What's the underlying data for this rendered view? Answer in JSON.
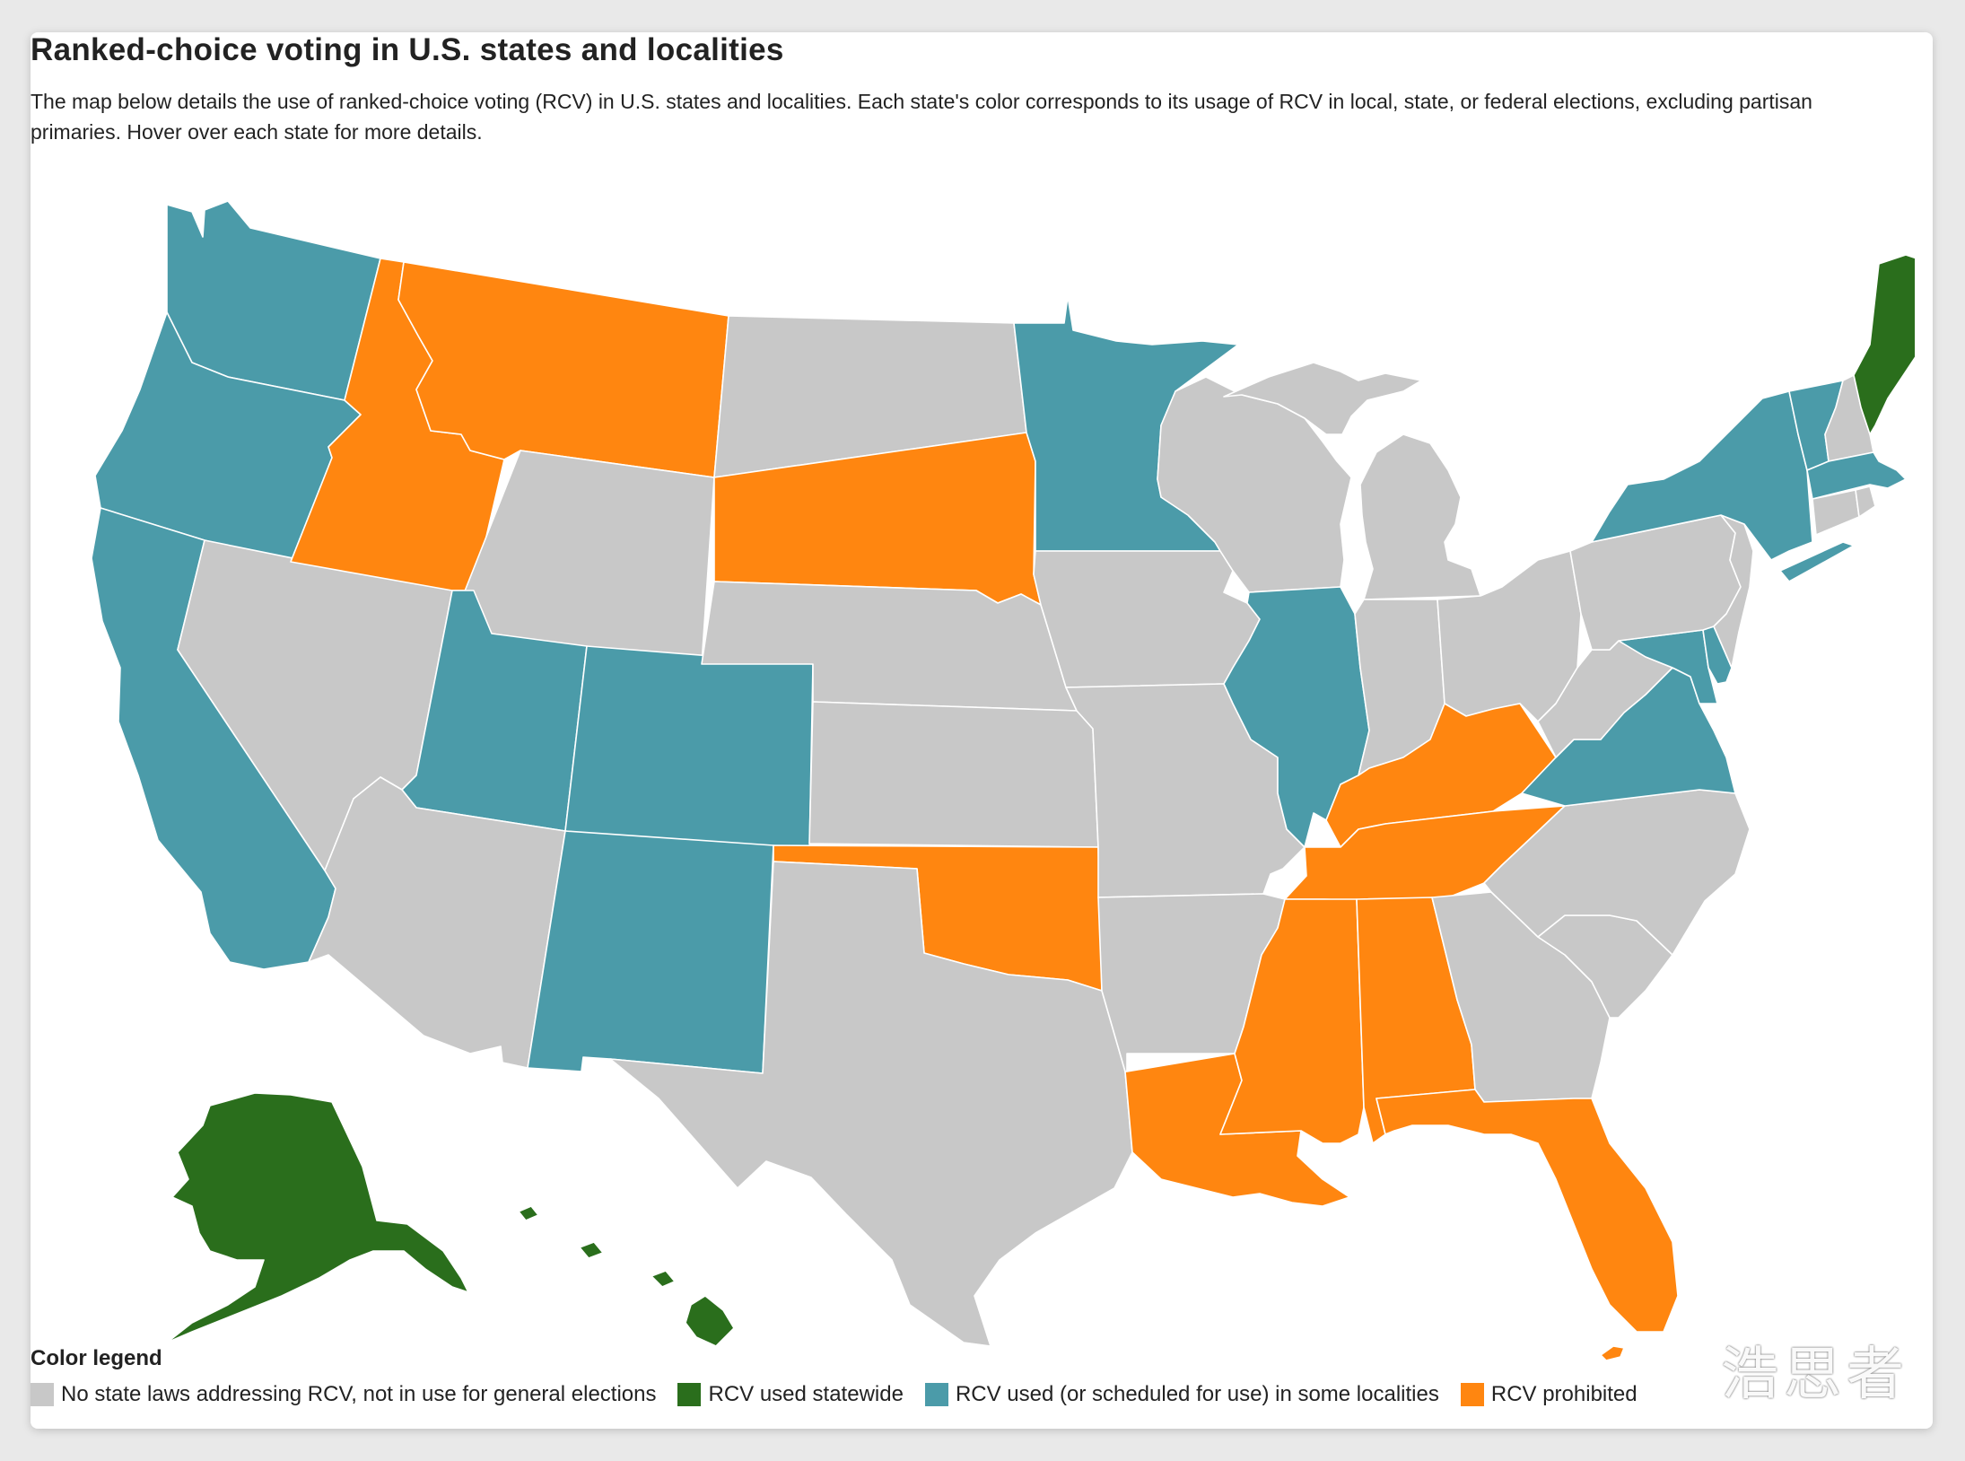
{
  "title": "Ranked-choice voting in U.S. states and localities",
  "description": "The map below details the use of ranked-choice voting (RCV) in U.S. states and localities. Each state's color corresponds to its usage of RCV in local, state, or federal elections, excluding partisan primaries. Hover over each state for more details.",
  "colors": {
    "none": "#c8c8c8",
    "statewide": "#2a6e1c",
    "localities": "#4b9ba9",
    "prohibited": "#ff8610"
  },
  "legend": {
    "title": "Color legend",
    "items": [
      {
        "key": "none",
        "label": "No state laws addressing RCV, not in use for general elections"
      },
      {
        "key": "statewide",
        "label": "RCV used statewide"
      },
      {
        "key": "localities",
        "label": "RCV used (or scheduled for use) in some localities"
      },
      {
        "key": "prohibited",
        "label": "RCV prohibited"
      }
    ]
  },
  "states": {
    "WA": "localities",
    "OR": "localities",
    "CA": "localities",
    "NV": "none",
    "ID": "prohibited",
    "MT": "prohibited",
    "WY": "none",
    "UT": "localities",
    "AZ": "none",
    "CO": "localities",
    "NM": "localities",
    "ND": "none",
    "SD": "prohibited",
    "NE": "none",
    "KS": "none",
    "OK": "prohibited",
    "TX": "none",
    "MN": "localities",
    "IA": "none",
    "MO": "none",
    "AR": "none",
    "LA": "prohibited",
    "WI": "none",
    "IL": "localities",
    "MI": "none",
    "IN": "none",
    "OH": "none",
    "KY": "prohibited",
    "TN": "prohibited",
    "MS": "prohibited",
    "AL": "prohibited",
    "GA": "none",
    "FL": "prohibited",
    "SC": "none",
    "NC": "none",
    "VA": "localities",
    "WV": "none",
    "MD": "localities",
    "DE": "localities",
    "PA": "none",
    "NJ": "none",
    "NY": "localities",
    "CT": "none",
    "RI": "none",
    "MA": "localities",
    "VT": "localities",
    "NH": "none",
    "ME": "statewide",
    "AK": "statewide",
    "HI": "statewide"
  },
  "watermark": "浩思者"
}
